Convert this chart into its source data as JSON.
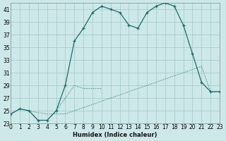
{
  "xlabel": "Humidex (Indice chaleur)",
  "background_color": "#cde8e8",
  "grid_color": "#aacccc",
  "line_color": "#1a6b6b",
  "xlim": [
    0,
    23
  ],
  "ylim": [
    23,
    42
  ],
  "yticks": [
    23,
    25,
    27,
    29,
    31,
    33,
    35,
    37,
    39,
    41
  ],
  "xticks": [
    0,
    1,
    2,
    3,
    4,
    5,
    6,
    7,
    8,
    9,
    10,
    11,
    12,
    13,
    14,
    15,
    16,
    17,
    18,
    19,
    20,
    21,
    22,
    23
  ],
  "curve1_x": [
    0,
    1,
    2,
    3,
    4,
    5,
    6,
    7,
    8,
    9,
    10,
    11,
    12,
    13,
    14,
    15,
    16,
    17,
    18,
    19,
    20,
    21,
    22,
    23
  ],
  "curve1_y": [
    24.5,
    25.3,
    25.0,
    24.7,
    24.5,
    24.5,
    24.5,
    25.0,
    25.5,
    26.0,
    26.5,
    27.0,
    27.5,
    28.0,
    28.5,
    29.0,
    29.5,
    30.0,
    30.5,
    31.0,
    31.5,
    32.0,
    28.0,
    28.0
  ],
  "curve2_x": [
    0,
    1,
    2,
    3,
    4,
    5,
    6,
    7,
    8,
    9,
    10,
    11,
    12,
    13,
    14,
    15,
    16,
    17,
    18,
    19,
    20,
    21,
    22,
    23
  ],
  "curve2_y": [
    24.5,
    25.3,
    25.0,
    23.5,
    23.5,
    25.0,
    29.0,
    36.0,
    38.0,
    40.5,
    41.5,
    41.0,
    40.5,
    38.5,
    38.0,
    40.5,
    41.5,
    42.0,
    41.5,
    38.5,
    34.0,
    29.5,
    28.0,
    28.0
  ],
  "curve3_x": [
    0,
    1,
    2,
    3,
    4,
    5,
    6,
    7,
    8,
    9,
    10
  ],
  "curve3_y": [
    24.5,
    25.3,
    25.0,
    23.5,
    23.5,
    25.0,
    27.0,
    29.0,
    28.5,
    28.5,
    28.5
  ]
}
